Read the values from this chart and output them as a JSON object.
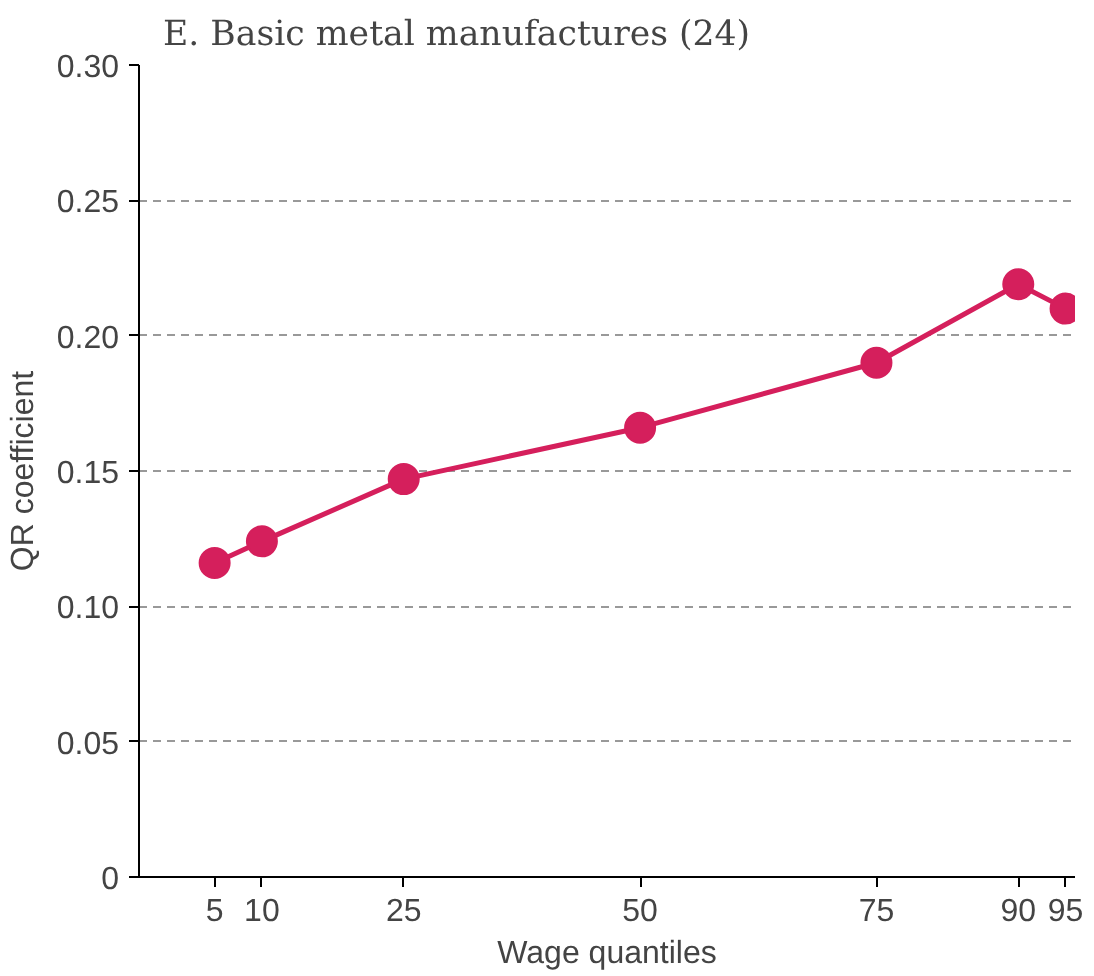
{
  "chart_data": {
    "type": "line",
    "title": "E. Basic metal manufactures (24)",
    "xlabel": "Wage quantiles",
    "ylabel": "QR coefficient",
    "x": [
      5,
      10,
      25,
      50,
      75,
      90,
      95
    ],
    "series": [
      {
        "color": "#d51f5c",
        "values": [
          0.116,
          0.124,
          0.147,
          0.166,
          0.19,
          0.219,
          0.21
        ]
      }
    ],
    "xlim": [
      -3,
      96
    ],
    "xticks": [
      5,
      10,
      25,
      50,
      75,
      90,
      95
    ],
    "ylim": [
      0,
      0.3
    ],
    "yticks": [
      0,
      {
        "value": 0.05,
        "label": "0.05"
      },
      {
        "value": 0.1,
        "label": "0.10"
      },
      {
        "value": 0.15,
        "label": "0.15"
      },
      {
        "value": 0.2,
        "label": "0.20"
      },
      {
        "value": 0.25,
        "label": "0.25"
      },
      {
        "value": 0.3,
        "label": "0.30"
      }
    ],
    "grid": "y",
    "marker": "circle",
    "line_style": "solid"
  }
}
